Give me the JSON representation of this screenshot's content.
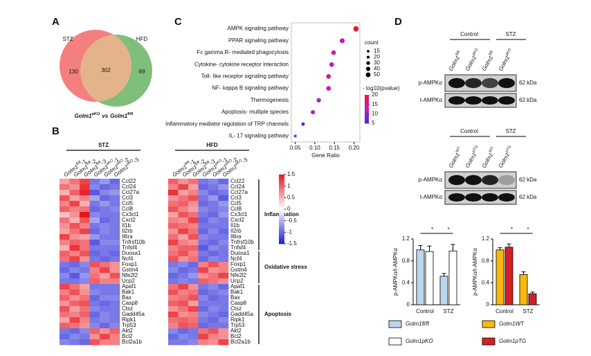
{
  "panels": [
    "A",
    "B",
    "C",
    "D"
  ],
  "venn": {
    "sets": [
      "STZ",
      "HFD"
    ],
    "counts": [
      130,
      302,
      69
    ],
    "caption": {
      "left": {
        "gene": "Golm1",
        "sup": "pKO"
      },
      "mid": "vs",
      "right": {
        "gene": "Golm1",
        "sup": "fl/fl"
      }
    }
  },
  "heatmap_stz": {
    "title": "STZ",
    "columns": [
      {
        "gene": "Golm1",
        "sup": "fl/fl",
        "suffix": "-1"
      },
      {
        "gene": "Golm1",
        "sup": "fl/fl",
        "suffix": "-2"
      },
      {
        "gene": "Golm1",
        "sup": "fl/fl",
        "suffix": "-3"
      },
      {
        "gene": "Golm1",
        "sup": "pKO",
        "suffix": "-1"
      },
      {
        "gene": "Golm1",
        "sup": "pKO",
        "suffix": "-2"
      },
      {
        "gene": "Golm1",
        "sup": "pKO",
        "suffix": "-3"
      }
    ],
    "genes": [
      "Ccl22",
      "Ccl24",
      "Ccl27a",
      "Ccl3",
      "Ccl5",
      "Ccl8",
      "Cx3cl1",
      "Cxcl2",
      "Il1b",
      "Il2rb",
      "Il6ra",
      "Tnfrsf10b",
      "Tnfsf4",
      "Duoxa1",
      "Ncf4",
      "Foxp1",
      "Gstm4",
      "Nfe2l2",
      "Ucp2",
      "Apaf1",
      "Bak1",
      "Bax",
      "Casp8",
      "Ctsz",
      "Gadd45a",
      "Ripk1",
      "Trp53",
      "Akt2",
      "Bcl2",
      "Bcl2a1b"
    ],
    "values": [
      [
        0.6,
        0.9,
        1.2,
        -0.9,
        -0.7,
        -1.0
      ],
      [
        0.9,
        0.7,
        1.3,
        -0.8,
        -1.0,
        -0.9
      ],
      [
        0.5,
        1.0,
        1.4,
        -1.1,
        -0.8,
        -0.7
      ],
      [
        1.1,
        0.6,
        0.8,
        -0.6,
        -1.0,
        -0.9
      ],
      [
        0.8,
        1.2,
        0.5,
        -0.9,
        -0.7,
        -0.9
      ],
      [
        1.0,
        0.8,
        0.9,
        -1.0,
        -0.9,
        -0.8
      ],
      [
        0.4,
        0.7,
        1.5,
        -0.8,
        -0.9,
        -0.9
      ],
      [
        0.9,
        0.5,
        1.1,
        -0.6,
        -1.0,
        -0.9
      ],
      [
        0.7,
        1.1,
        0.8,
        -0.9,
        -0.8,
        -0.9
      ],
      [
        0.6,
        0.9,
        1.2,
        -1.0,
        -0.8,
        -0.9
      ],
      [
        1.2,
        0.7,
        0.6,
        -0.7,
        -0.9,
        -0.9
      ],
      [
        0.8,
        1.0,
        0.9,
        -1.1,
        -0.8,
        -0.8
      ],
      [
        0.5,
        1.3,
        0.9,
        -0.9,
        -0.9,
        -0.9
      ],
      [
        1.0,
        0.8,
        1.1,
        -1.0,
        -0.9,
        -1.0
      ],
      [
        0.9,
        1.2,
        0.7,
        -0.9,
        -1.0,
        -0.9
      ],
      [
        -0.9,
        -1.0,
        -0.8,
        1.1,
        0.9,
        0.7
      ],
      [
        -1.0,
        -0.8,
        -0.9,
        0.8,
        1.2,
        0.7
      ],
      [
        -0.8,
        -1.1,
        -0.7,
        0.9,
        0.6,
        1.1
      ],
      [
        -0.9,
        -0.9,
        -0.8,
        1.0,
        0.8,
        0.8
      ],
      [
        1.2,
        0.9,
        0.6,
        -0.9,
        -0.9,
        -0.9
      ],
      [
        0.8,
        1.1,
        0.7,
        -0.8,
        -0.9,
        -0.9
      ],
      [
        1.0,
        0.7,
        0.9,
        -1.0,
        -0.8,
        -0.8
      ],
      [
        0.7,
        1.0,
        1.1,
        -0.9,
        -1.0,
        -0.9
      ],
      [
        1.1,
        0.6,
        0.9,
        -0.8,
        -0.9,
        -0.9
      ],
      [
        0.9,
        0.8,
        1.0,
        -1.0,
        -0.8,
        -0.9
      ],
      [
        0.6,
        1.2,
        0.8,
        -0.9,
        -0.8,
        -0.9
      ],
      [
        1.0,
        0.9,
        0.7,
        -0.8,
        -1.0,
        -0.8
      ],
      [
        -0.9,
        -1.0,
        -0.8,
        1.0,
        0.7,
        1.0
      ],
      [
        -1.0,
        -0.8,
        -0.9,
        0.7,
        1.2,
        0.8
      ],
      [
        -0.8,
        -0.9,
        -1.0,
        1.1,
        0.8,
        0.8
      ]
    ]
  },
  "heatmap_hfd": {
    "title": "HFD",
    "columns": [
      {
        "gene": "Golm1",
        "sup": "fl/fl",
        "suffix": "-1"
      },
      {
        "gene": "Golm1",
        "sup": "fl/fl",
        "suffix": "-2"
      },
      {
        "gene": "Golm1",
        "sup": "fl/fl",
        "suffix": "-3"
      },
      {
        "gene": "Golm1",
        "sup": "pKO",
        "suffix": "-1"
      },
      {
        "gene": "Golm1",
        "sup": "pKO",
        "suffix": "-2"
      },
      {
        "gene": "Golm1",
        "sup": "pKO",
        "suffix": "-3"
      }
    ],
    "groups": [
      {
        "name": "Inflammation",
        "genes": [
          "Ccl22",
          "Ccl24",
          "Ccl27a",
          "Ccl3",
          "Ccl5",
          "Ccl8",
          "Cx3cl1",
          "Cxcl2",
          "Il1b",
          "Il2rb",
          "Il6ra",
          "Tnfrsf10b",
          "Tnfsf4"
        ],
        "values": [
          [
            1.0,
            0.7,
            0.9,
            -0.9,
            -0.8,
            -1.0
          ],
          [
            0.8,
            1.2,
            0.6,
            -1.0,
            -0.9,
            -0.7
          ],
          [
            1.3,
            0.6,
            0.8,
            -0.8,
            -1.0,
            -0.9
          ],
          [
            0.7,
            0.9,
            1.1,
            -0.9,
            -0.7,
            -1.1
          ],
          [
            0.9,
            1.0,
            0.7,
            -1.0,
            -0.9,
            -0.7
          ],
          [
            1.1,
            0.8,
            0.6,
            -0.8,
            -0.9,
            -0.8
          ],
          [
            0.6,
            1.1,
            0.9,
            -0.9,
            -1.0,
            -0.7
          ],
          [
            0.8,
            0.7,
            1.2,
            -1.0,
            -0.8,
            -0.9
          ],
          [
            1.0,
            0.9,
            0.8,
            -0.9,
            -0.9,
            -0.9
          ],
          [
            0.7,
            1.2,
            0.9,
            -1.0,
            -0.8,
            -1.0
          ],
          [
            0.9,
            0.6,
            1.1,
            -0.8,
            -0.9,
            -0.9
          ],
          [
            1.2,
            0.8,
            0.7,
            -0.9,
            -1.0,
            -0.8
          ],
          [
            0.8,
            1.0,
            1.0,
            -1.1,
            -0.8,
            -0.9
          ]
        ]
      },
      {
        "name": "Oxidative stress",
        "genes": [
          "Duoxa1",
          "Ncf4",
          "Foxp1",
          "Gstm4",
          "Nfe2l2",
          "Ucp2"
        ],
        "values": [
          [
            0.9,
            1.1,
            0.8,
            -0.9,
            -1.0,
            -0.9
          ],
          [
            1.1,
            0.7,
            0.9,
            -1.0,
            -0.8,
            -0.9
          ],
          [
            -0.9,
            -0.8,
            -1.0,
            0.8,
            1.1,
            0.8
          ],
          [
            -0.8,
            -1.0,
            -0.9,
            1.2,
            0.7,
            0.8
          ],
          [
            -1.0,
            -0.9,
            -0.7,
            0.7,
            0.9,
            1.2
          ],
          [
            -0.9,
            -0.8,
            -0.9,
            1.0,
            0.9,
            0.7
          ]
        ]
      },
      {
        "name": "Apoptosis",
        "genes": [
          "Apaf1",
          "Bak1",
          "Bax",
          "Casp8",
          "Ctsz",
          "Gadd45a",
          "Ripk1",
          "Trp53",
          "Akt2",
          "Bcl2",
          "Bcl2a1b"
        ],
        "values": [
          [
            0.9,
            1.2,
            0.7,
            -0.9,
            -0.8,
            -1.0
          ],
          [
            1.1,
            0.8,
            0.9,
            -1.0,
            -0.9,
            -0.8
          ],
          [
            0.8,
            0.9,
            1.1,
            -0.8,
            -1.0,
            -0.9
          ],
          [
            1.0,
            1.1,
            0.6,
            -0.9,
            -0.9,
            -0.9
          ],
          [
            0.7,
            0.9,
            1.2,
            -1.0,
            -0.8,
            -0.9
          ],
          [
            1.2,
            0.7,
            0.8,
            -0.8,
            -0.9,
            -1.0
          ],
          [
            0.9,
            1.0,
            0.9,
            -0.9,
            -1.0,
            -0.8
          ],
          [
            0.8,
            1.1,
            1.0,
            -1.0,
            -0.9,
            -0.9
          ],
          [
            -0.8,
            -1.0,
            -0.9,
            0.9,
            1.1,
            0.7
          ],
          [
            -1.0,
            -0.8,
            -0.9,
            1.2,
            0.8,
            0.7
          ],
          [
            -0.9,
            -0.9,
            -0.8,
            0.8,
            0.7,
            1.2
          ]
        ]
      }
    ]
  },
  "colorbar": {
    "lim": [
      -1.5,
      1.5
    ],
    "ticks": [
      1.5,
      1,
      0.5,
      0,
      -0.5,
      -1,
      -1.5
    ]
  },
  "chart_data": [
    {
      "type": "dot",
      "x_label": "Gene Ratio",
      "categories": [
        "AMPK signaling pathway",
        "PPAR signaling pathway",
        "Fc gamma R- mediated phagocytosis",
        "Cytokine- cytokine receptor interaction",
        "Toll- like receptor signaling pathway",
        "NF- kappa B signaling pathway",
        "Thermogenesis",
        "Apoptosis- multiple species",
        "Inflammatory mediator regulation of TRP channels",
        "IL- 17 signaling pathway"
      ],
      "values": [
        0.205,
        0.17,
        0.148,
        0.143,
        0.135,
        0.135,
        0.11,
        0.095,
        0.07,
        0.05
      ],
      "counts": [
        35,
        30,
        27,
        27,
        27,
        27,
        24,
        22,
        15,
        10
      ],
      "log10_pvalue": [
        20,
        13,
        13,
        12,
        15,
        13,
        11,
        11,
        7,
        10
      ],
      "xlim": [
        0.04,
        0.215
      ],
      "xticks": [
        {
          "value": 0.05,
          "label": "0.05"
        },
        {
          "value": 0.1,
          "label": "0.10"
        },
        {
          "value": 0.15,
          "label": "0.15"
        },
        {
          "value": 0.2,
          "label": "0.20"
        }
      ],
      "size_legend": {
        "title": "count",
        "values": [
          15,
          20,
          30,
          40,
          50
        ]
      },
      "color_legend": {
        "title": "- log10(pvalue)",
        "ticks": [
          20,
          15,
          10,
          5
        ]
      }
    },
    {
      "type": "bar",
      "y_label": "p-AMPKα/t-AMPKα",
      "categories": [
        "Control",
        "STZ"
      ],
      "series": [
        {
          "name": "Golm1fl/fl",
          "color": "#bcd6ef",
          "values": [
            1.0,
            0.52
          ],
          "errors": [
            0.08,
            0.05
          ]
        },
        {
          "name": "Golm1pKO",
          "color": "#ffffff",
          "values": [
            0.97,
            0.98
          ],
          "errors": [
            0.1,
            0.12
          ]
        }
      ],
      "ylim": [
        0,
        1.2
      ],
      "yticks": [
        0,
        0.4,
        0.8,
        1.2
      ],
      "annotations": [
        "*",
        "*"
      ]
    },
    {
      "type": "bar",
      "y_label": "p-AMPKα/t-AMPKα",
      "categories": [
        "Control",
        "STZ"
      ],
      "series": [
        {
          "name": "Golm1WT",
          "color": "#f5b90f",
          "values": [
            1.0,
            0.55
          ],
          "errors": [
            0.04,
            0.05
          ]
        },
        {
          "name": "Golm1pTG",
          "color": "#d41f26",
          "values": [
            1.05,
            0.2
          ],
          "errors": [
            0.06,
            0.03
          ]
        }
      ],
      "ylim": [
        0,
        1.2
      ],
      "yticks": [
        0,
        0.4,
        0.8,
        1.2
      ],
      "annotations": [
        "*",
        "*"
      ]
    }
  ],
  "blots": [
    {
      "groups": [
        "Control",
        "STZ"
      ],
      "lanes": [
        {
          "gene": "Golm1",
          "sup": "fl/fl"
        },
        {
          "gene": "Golm1",
          "sup": "pKO"
        },
        {
          "gene": "Golm1",
          "sup": "fl/fl"
        },
        {
          "gene": "Golm1",
          "sup": "pKO"
        }
      ],
      "rows": [
        {
          "label": "p-AMPKα",
          "size": "62 kDa"
        },
        {
          "label": "t-AMPKα",
          "size": "62 kDa"
        }
      ]
    },
    {
      "groups": [
        "Control",
        "STZ"
      ],
      "lanes": [
        {
          "gene": "Golm1",
          "sup": "WT"
        },
        {
          "gene": "Golm1",
          "sup": "pTG"
        },
        {
          "gene": "Golm1",
          "sup": "WT"
        },
        {
          "gene": "Golm1",
          "sup": "pTG"
        }
      ],
      "rows": [
        {
          "label": "p-AMPKα",
          "size": "62 kDa"
        },
        {
          "label": "t-AMPKα",
          "size": "62 kDa"
        }
      ]
    }
  ]
}
